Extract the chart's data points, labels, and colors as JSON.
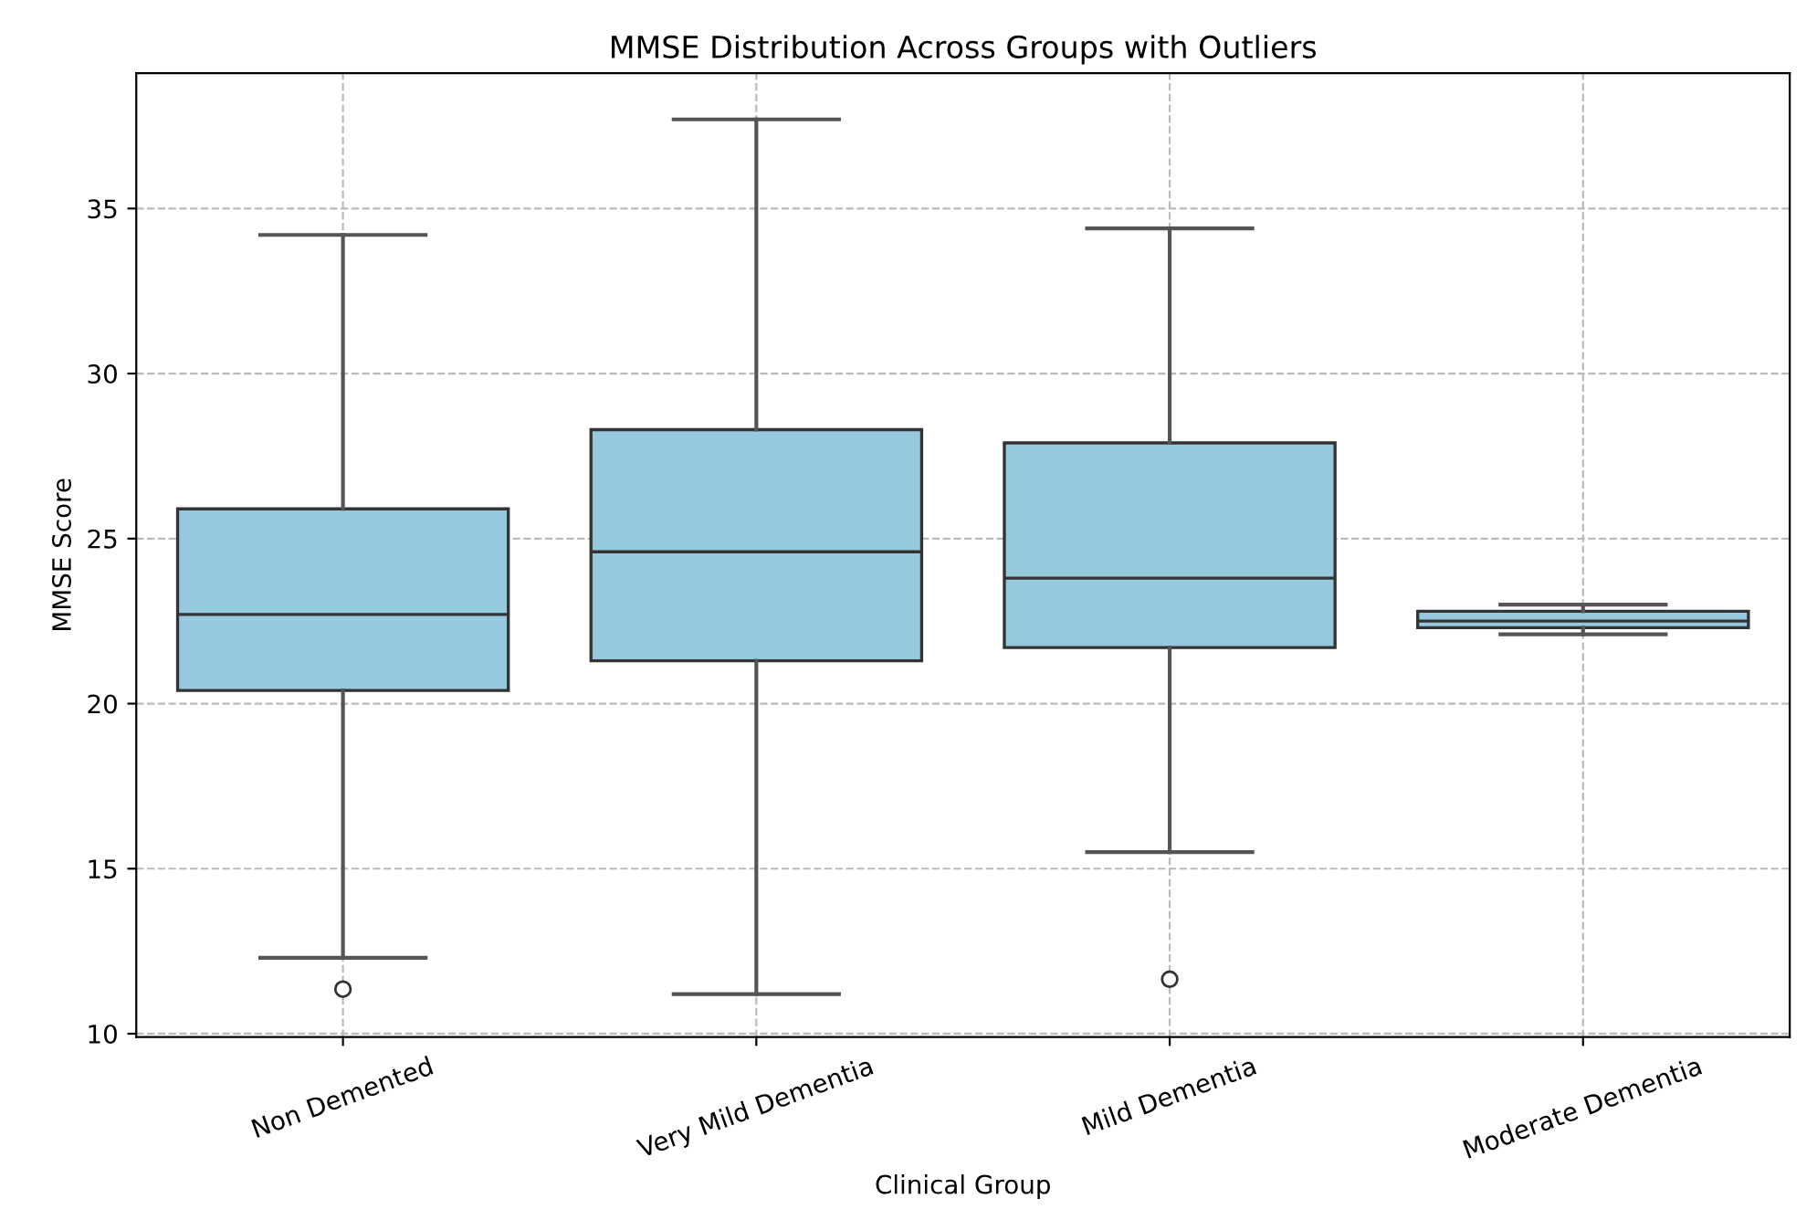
{
  "chart_data": {
    "type": "box",
    "title": "MMSE Distribution Across Groups with Outliers",
    "xlabel": "Clinical Group",
    "ylabel": "MMSE Score",
    "categories": [
      "Non Demented",
      "Very Mild Dementia",
      "Mild Dementia",
      "Moderate Dementia"
    ],
    "series": [
      {
        "color": "#96c9de",
        "boxes": [
          {
            "low": 12.3,
            "q1": 20.4,
            "median": 22.7,
            "q3": 25.9,
            "high": 34.2,
            "outliers": [
              11.35
            ]
          },
          {
            "low": 11.2,
            "q1": 21.3,
            "median": 24.6,
            "q3": 28.3,
            "high": 37.7
          },
          {
            "low": 15.5,
            "q1": 21.7,
            "median": 23.8,
            "q3": 27.9,
            "high": 34.4,
            "outliers": [
              11.65
            ]
          },
          {
            "low": 22.1,
            "q1": 22.3,
            "median": 22.5,
            "q3": 22.8,
            "high": 23.0
          }
        ]
      }
    ],
    "ylim": [
      9.9,
      39.1
    ],
    "yticks": [
      10,
      15,
      20,
      25,
      30,
      35
    ],
    "grid": true,
    "line_style": "dashed"
  }
}
